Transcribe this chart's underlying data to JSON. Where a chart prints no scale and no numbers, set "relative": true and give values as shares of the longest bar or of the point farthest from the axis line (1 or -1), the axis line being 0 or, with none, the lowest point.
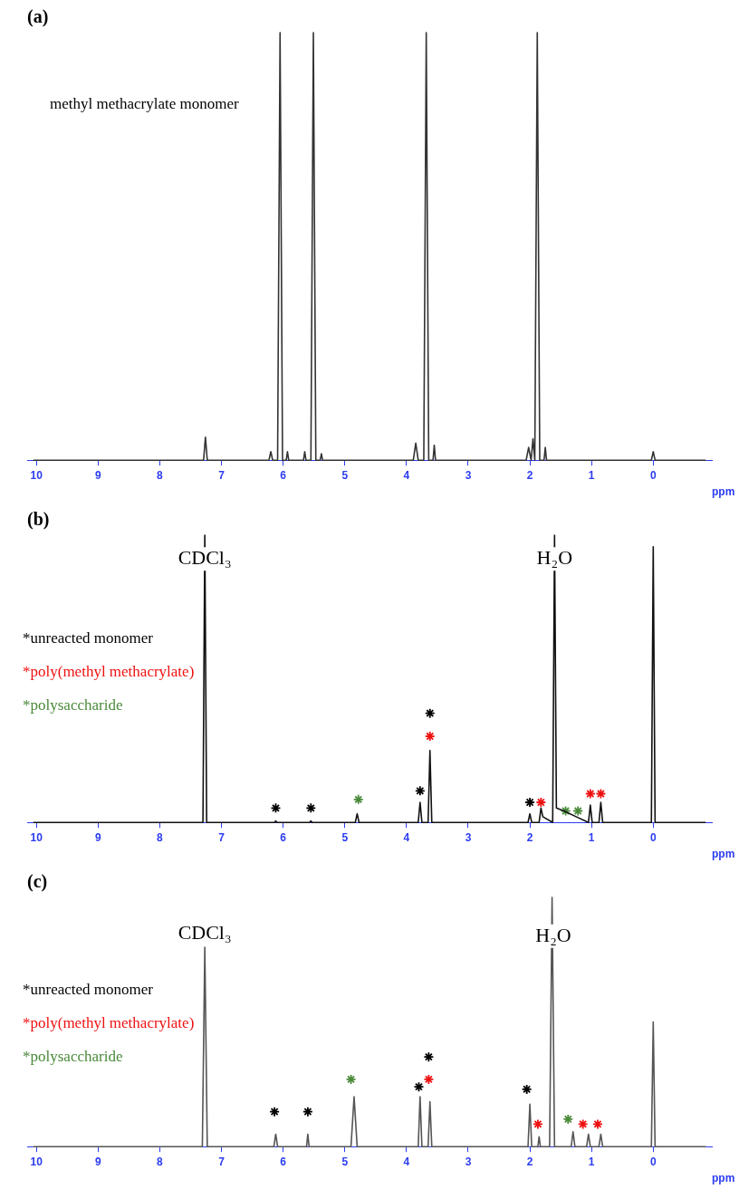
{
  "chart_data": [
    {
      "type": "line",
      "title": "(a)",
      "xlabel": "ppm",
      "relative": true,
      "xlim": [
        10.15,
        -0.95
      ],
      "xticks": [
        10,
        9,
        8,
        7,
        6,
        5,
        4,
        3,
        2,
        1,
        0
      ],
      "marker": "none",
      "line_style": "solid",
      "annotations": [
        "methyl methacrylate monomer"
      ],
      "series": [
        {
          "color": "#333333",
          "x": [
            10.05,
            7.29,
            7.26,
            7.23,
            6.23,
            6.2,
            6.17,
            6.09,
            6.05,
            6.01,
            5.95,
            5.93,
            5.91,
            5.67,
            5.65,
            5.63,
            5.55,
            5.51,
            5.47,
            5.4,
            5.38,
            5.36,
            3.89,
            3.85,
            3.81,
            3.72,
            3.68,
            3.64,
            3.57,
            3.55,
            3.53,
            2.06,
            2.02,
            1.98,
            1.95,
            1.92,
            1.88,
            1.84,
            1.77,
            1.75,
            1.73,
            0.03,
            0,
            -0.03,
            -0.85
          ],
          "values": [
            0,
            0,
            0.054,
            0,
            0,
            0.02,
            0,
            0,
            1,
            0,
            0,
            0.02,
            0,
            0,
            0.02,
            0,
            0,
            1,
            0,
            0,
            0.015,
            0,
            0,
            0.04,
            0,
            0,
            1,
            0,
            0,
            0.035,
            0,
            0,
            0.03,
            0,
            0.05,
            0,
            1,
            0,
            0,
            0.03,
            0,
            0,
            0.02,
            0,
            0
          ]
        }
      ]
    },
    {
      "type": "line",
      "title": "(b)",
      "xlabel": "ppm",
      "relative": true,
      "xlim": [
        10.15,
        -0.95
      ],
      "xticks": [
        10,
        9,
        8,
        7,
        6,
        5,
        4,
        3,
        2,
        1,
        0
      ],
      "marker": "none",
      "line_style": "solid",
      "annotations": [
        {
          "text": "CDCl₃",
          "x": 7.27,
          "y": 0.87
        },
        {
          "text": "H₂O",
          "x": 1.6,
          "y": 0.87
        }
      ],
      "series": [
        {
          "color": "#111111",
          "x": [
            10.05,
            7.3,
            7.27,
            7.24,
            6.14,
            6.12,
            6.1,
            5.57,
            5.55,
            5.53,
            4.83,
            4.8,
            4.77,
            3.81,
            3.78,
            3.75,
            3.65,
            3.62,
            3.59,
            2.03,
            2.0,
            1.97,
            1.85,
            1.82,
            1.79,
            1.63,
            1.6,
            1.57,
            1.45,
            1.25,
            1.05,
            1.02,
            0.99,
            0.88,
            0.85,
            0.82,
            0.03,
            0,
            -0.03,
            -0.85
          ],
          "values": [
            0,
            0,
            1,
            0,
            0,
            0.005,
            0,
            0,
            0.005,
            0,
            0,
            0.03,
            0,
            0,
            0.07,
            0,
            0,
            0.25,
            0,
            0,
            0.03,
            0,
            0,
            0.05,
            0.02,
            0,
            1,
            0.05,
            0.04,
            0.02,
            0,
            0.06,
            0,
            0,
            0.07,
            0,
            0,
            0.96,
            0,
            0
          ]
        },
        {
          "type": "scatter",
          "name": "*unreacted monomer",
          "color": "#000000",
          "marker": "cross",
          "x": [
            6.12,
            5.55,
            3.78,
            3.62,
            2.0
          ],
          "values": [
            0.05,
            0.05,
            0.11,
            0.38,
            0.07
          ]
        },
        {
          "type": "scatter",
          "name": "*poly(methyl methacrylate)",
          "color": "#ee1111",
          "marker": "cross",
          "x": [
            3.62,
            1.82,
            1.02,
            0.85
          ],
          "values": [
            0.3,
            0.07,
            0.1,
            0.1
          ]
        },
        {
          "type": "scatter",
          "name": "*polysaccharide",
          "color": "#4a8a3a",
          "marker": "cross",
          "x": [
            4.78,
            1.42,
            1.22
          ],
          "values": [
            0.08,
            0.04,
            0.04
          ]
        }
      ]
    },
    {
      "type": "line",
      "title": "(c)",
      "xlabel": "ppm",
      "relative": true,
      "xlim": [
        10.15,
        -0.95
      ],
      "xticks": [
        10,
        9,
        8,
        7,
        6,
        5,
        4,
        3,
        2,
        1,
        0
      ],
      "marker": "none",
      "line_style": "solid",
      "annotations": [
        {
          "text": "CDCl₃",
          "x": 7.27,
          "y": 0.8
        },
        {
          "text": "H₂O",
          "x": 1.62,
          "y": 0.79
        }
      ],
      "series": [
        {
          "color": "#555555",
          "x": [
            10.05,
            7.31,
            7.27,
            7.23,
            6.15,
            6.12,
            6.09,
            5.62,
            5.6,
            5.58,
            4.9,
            4.85,
            4.8,
            3.81,
            3.78,
            3.75,
            3.65,
            3.62,
            3.59,
            2.03,
            2.0,
            1.97,
            1.87,
            1.85,
            1.83,
            1.68,
            1.64,
            1.6,
            1.33,
            1.3,
            1.27,
            1.08,
            1.05,
            1.02,
            0.88,
            0.85,
            0.82,
            0.03,
            0,
            -0.03,
            -0.85
          ],
          "values": [
            0,
            0,
            0.8,
            0,
            0,
            0.05,
            0,
            0,
            0.05,
            0,
            0,
            0.2,
            0,
            0,
            0.2,
            0,
            0,
            0.18,
            0,
            0,
            0.17,
            0,
            0,
            0.04,
            0,
            0,
            1,
            0,
            0,
            0.06,
            0,
            0,
            0.05,
            0,
            0,
            0.05,
            0,
            0,
            0.5,
            0,
            0
          ]
        },
        {
          "type": "scatter",
          "name": "*unreacted monomer",
          "color": "#000000",
          "marker": "cross",
          "x": [
            6.14,
            5.6,
            3.8,
            3.64,
            2.05
          ],
          "values": [
            0.14,
            0.14,
            0.24,
            0.36,
            0.23
          ]
        },
        {
          "type": "scatter",
          "name": "*poly(methyl methacrylate)",
          "color": "#ee1111",
          "marker": "cross",
          "x": [
            3.64,
            1.87,
            1.14,
            0.9
          ],
          "values": [
            0.27,
            0.09,
            0.09,
            0.09
          ]
        },
        {
          "type": "scatter",
          "name": "*polysaccharide",
          "color": "#4a8a3a",
          "marker": "cross",
          "x": [
            4.9,
            1.38
          ],
          "values": [
            0.27,
            0.11
          ]
        }
      ]
    }
  ]
}
